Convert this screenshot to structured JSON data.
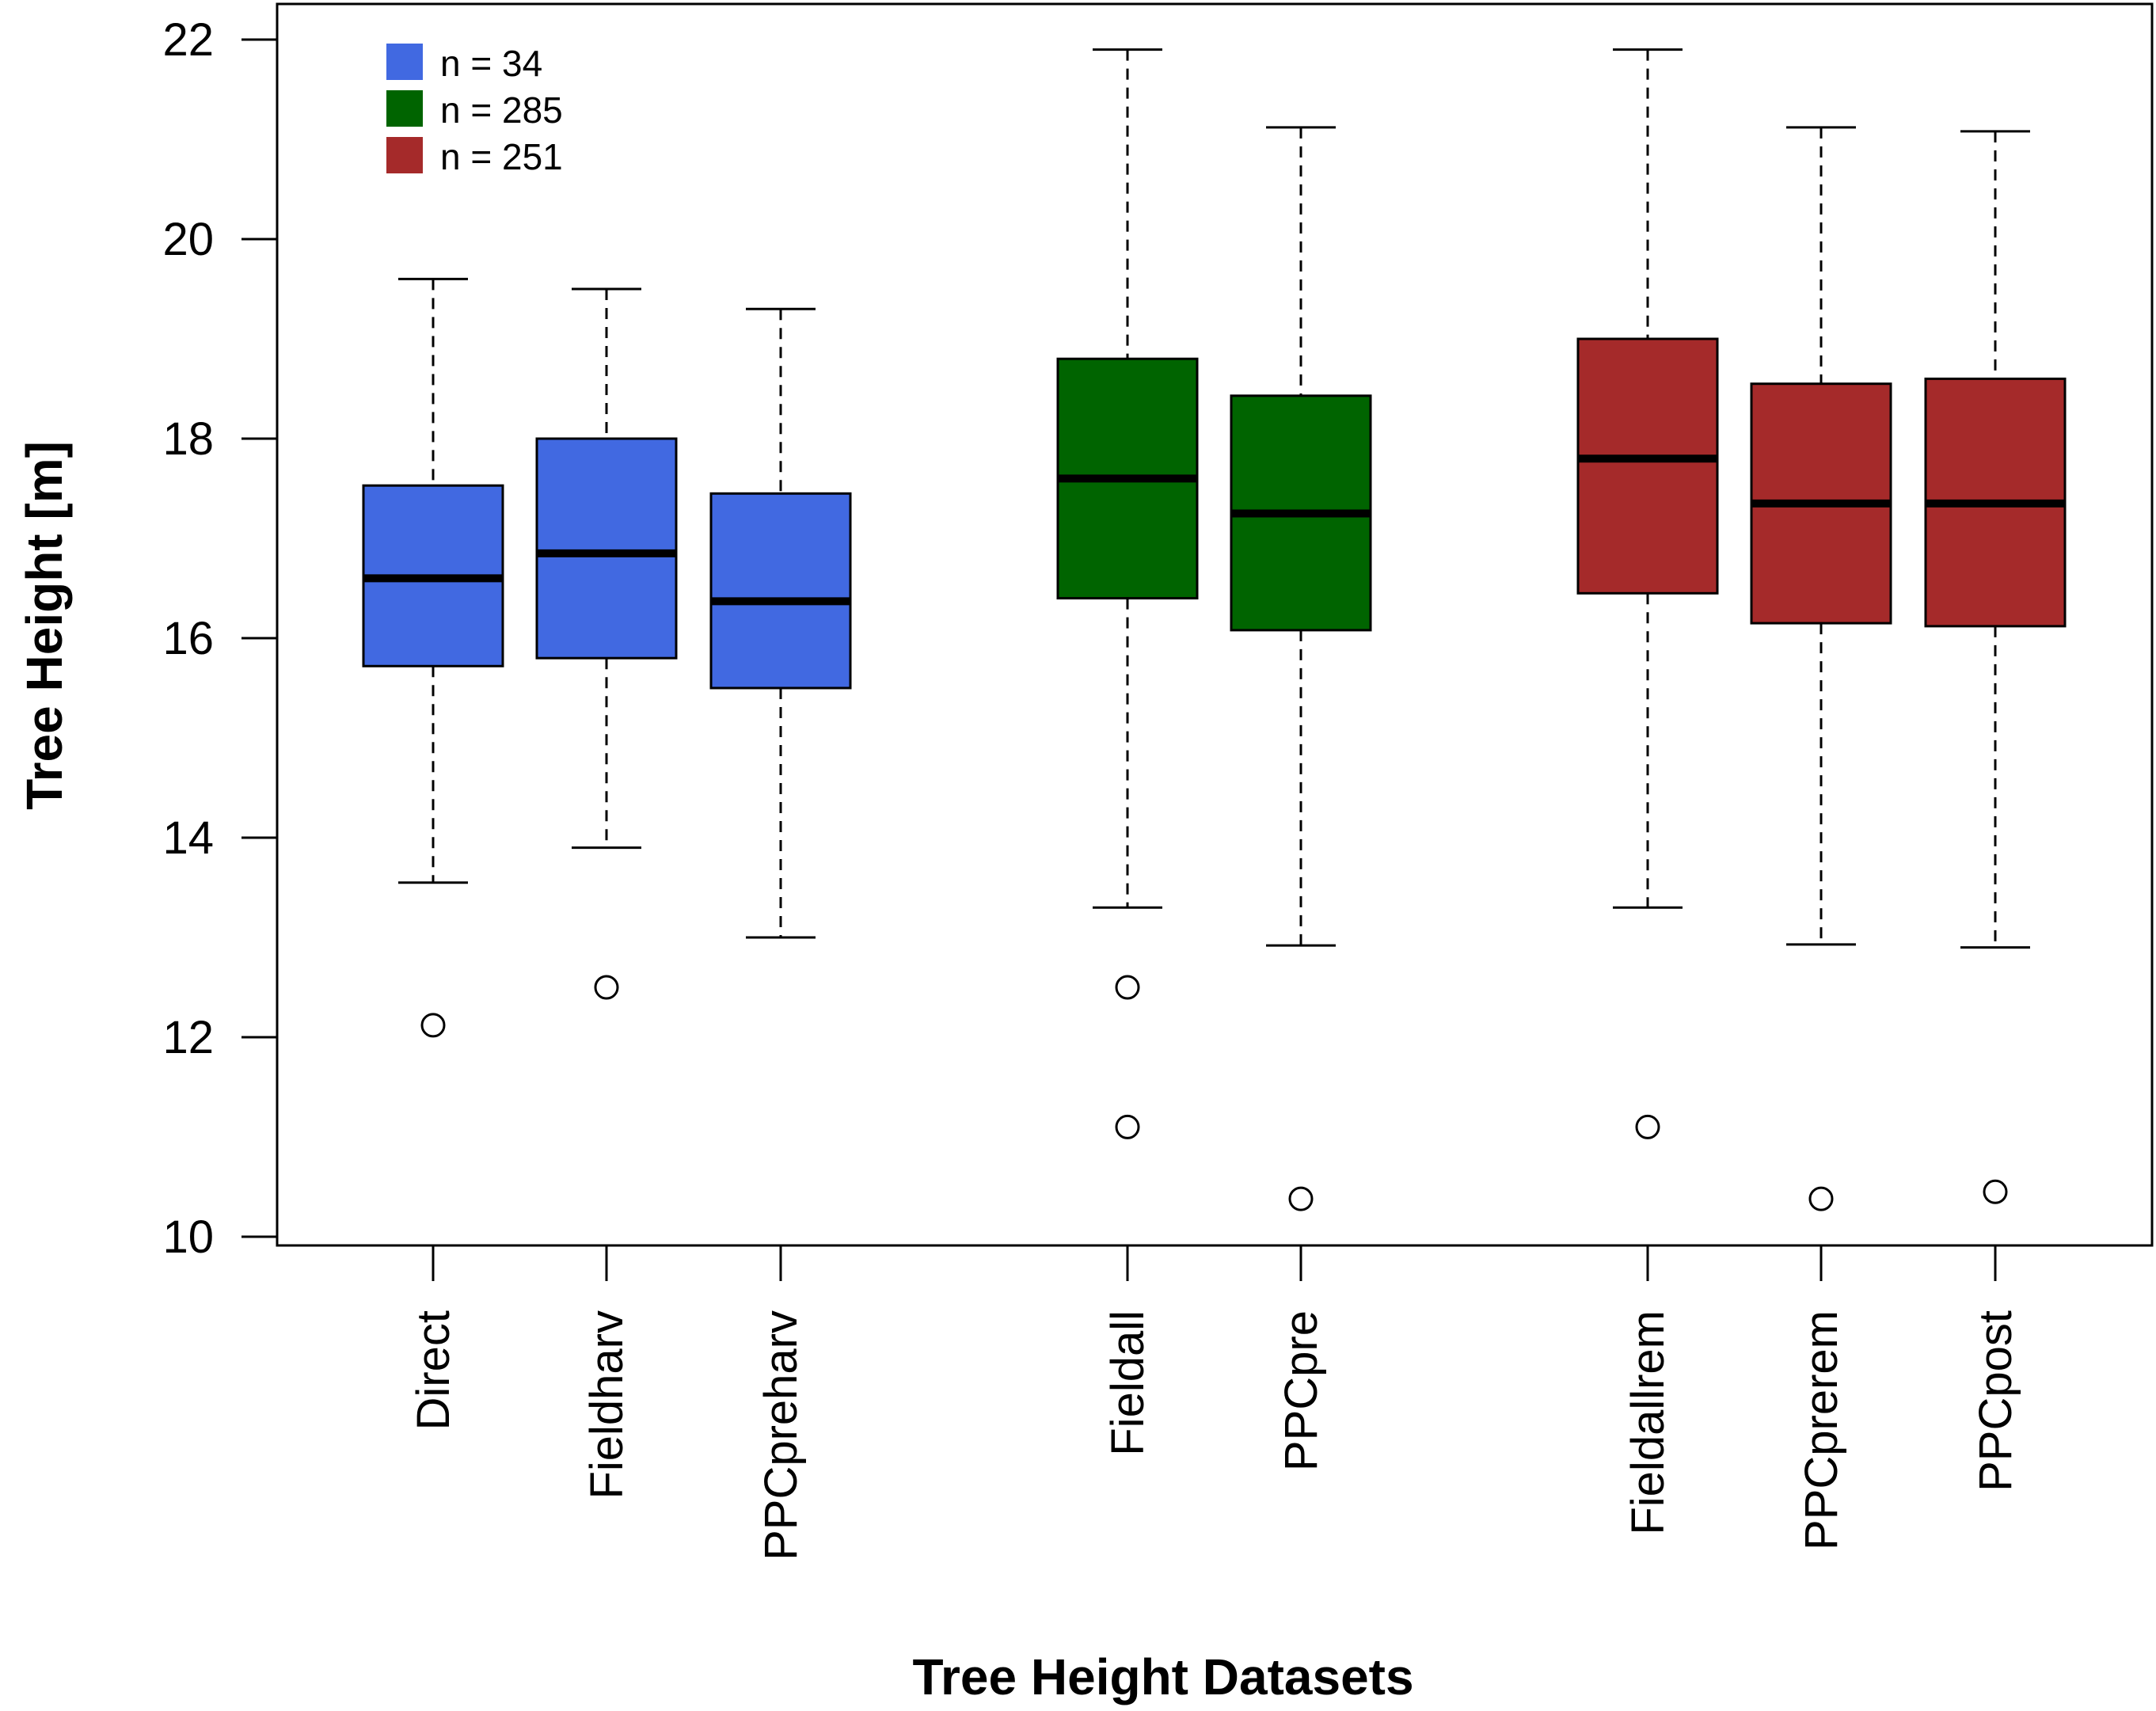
{
  "chart_data": {
    "type": "boxplot",
    "title": "",
    "xlabel": "Tree Height Datasets",
    "ylabel": "Tree Height [m]",
    "ylim": [
      10,
      22
    ],
    "yticks": [
      10,
      12,
      14,
      16,
      18,
      20,
      22
    ],
    "grid": false,
    "legend_position": "top-left",
    "legend": [
      {
        "label": "n = 34",
        "color": "#4169E1"
      },
      {
        "label": "n = 285",
        "color": "#006400"
      },
      {
        "label": "n = 251",
        "color": "#A52A2A"
      }
    ],
    "series": [
      {
        "name": "Direct",
        "group": 0,
        "color": "#4169E1",
        "whisker_low": 13.55,
        "q1": 15.72,
        "median": 16.6,
        "q3": 17.53,
        "whisker_high": 19.6,
        "outliers": [
          12.12
        ]
      },
      {
        "name": "Fieldharv",
        "group": 0,
        "color": "#4169E1",
        "whisker_low": 13.9,
        "q1": 15.8,
        "median": 16.85,
        "q3": 18.0,
        "whisker_high": 19.5,
        "outliers": [
          12.5
        ]
      },
      {
        "name": "PPCpreharv",
        "group": 0,
        "color": "#4169E1",
        "whisker_low": 13.0,
        "q1": 15.5,
        "median": 16.37,
        "q3": 17.45,
        "whisker_high": 19.3,
        "outliers": []
      },
      {
        "name": "Fieldall",
        "group": 1,
        "color": "#006400",
        "whisker_low": 13.3,
        "q1": 16.4,
        "median": 17.6,
        "q3": 18.8,
        "whisker_high": 21.9,
        "outliers": [
          12.5,
          11.1
        ]
      },
      {
        "name": "PPCpre",
        "group": 1,
        "color": "#006400",
        "whisker_low": 12.92,
        "q1": 16.08,
        "median": 17.25,
        "q3": 18.43,
        "whisker_high": 21.12,
        "outliers": [
          10.38
        ]
      },
      {
        "name": "Fieldallrem",
        "group": 2,
        "color": "#A52A2A",
        "whisker_low": 13.3,
        "q1": 16.45,
        "median": 17.8,
        "q3": 19.0,
        "whisker_high": 21.9,
        "outliers": [
          11.1
        ]
      },
      {
        "name": "PPCprerem",
        "group": 2,
        "color": "#A52A2A",
        "whisker_low": 12.93,
        "q1": 16.15,
        "median": 17.35,
        "q3": 18.55,
        "whisker_high": 21.12,
        "outliers": [
          10.38
        ]
      },
      {
        "name": "PPCpost",
        "group": 2,
        "color": "#A52A2A",
        "whisker_low": 12.9,
        "q1": 16.12,
        "median": 17.35,
        "q3": 18.6,
        "whisker_high": 21.08,
        "outliers": [
          10.45
        ]
      }
    ]
  }
}
